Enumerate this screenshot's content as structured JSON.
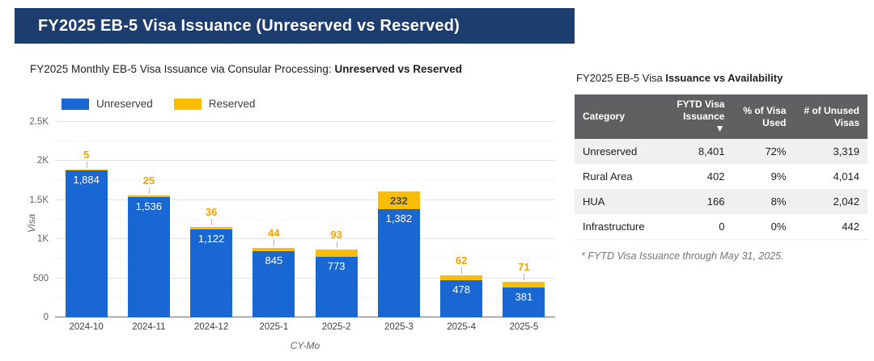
{
  "banner": {
    "title": "FY2025 EB-5 Visa Issuance (Unreserved vs Reserved)"
  },
  "colors": {
    "banner_bg": "#1d3d6e",
    "unreserved": "#1967d2",
    "reserved": "#fbbc04",
    "reserved_annotation_text": "#f5a300",
    "table_header_bg": "#5f6062",
    "table_row_stripe": "#f0f0f0"
  },
  "chart_data": [
    {
      "type": "bar",
      "stacked": true,
      "title_prefix": "FY2025 Monthly EB-5 Visa Issuance via Consular Processing: ",
      "title_bold": "Unreserved vs Reserved",
      "categories": [
        "2024-10",
        "2024-11",
        "2024-12",
        "2025-1",
        "2025-2",
        "2025-3",
        "2025-4",
        "2025-5"
      ],
      "series": [
        {
          "name": "Unreserved",
          "color": "#1967d2",
          "values": [
            1884,
            1536,
            1122,
            845,
            773,
            1382,
            478,
            381
          ]
        },
        {
          "name": "Reserved",
          "color": "#fbbc04",
          "values": [
            5,
            25,
            36,
            44,
            93,
            232,
            62,
            71
          ]
        }
      ],
      "xlabel": "CY-Mo",
      "ylabel": "Visa",
      "ylim": [
        0,
        2500
      ],
      "yticks": [
        {
          "v": 0,
          "label": "0"
        },
        {
          "v": 500,
          "label": "500"
        },
        {
          "v": 1000,
          "label": "1K"
        },
        {
          "v": 1500,
          "label": "1.5K"
        },
        {
          "v": 2000,
          "label": "2K"
        },
        {
          "v": 2500,
          "label": "2.5K"
        }
      ],
      "grid": true,
      "legend_position": "top-left"
    },
    {
      "type": "table",
      "title_prefix": "FY2025 EB-5 Visa ",
      "title_bold": "Issuance vs Availability",
      "columns": [
        {
          "lines": [
            "Category"
          ],
          "align": "left",
          "sortable": false
        },
        {
          "lines": [
            "FYTD Visa",
            "Issuance ▼"
          ],
          "align": "right",
          "sortable": true
        },
        {
          "lines": [
            "% of Visa",
            "Used"
          ],
          "align": "right",
          "sortable": false
        },
        {
          "lines": [
            "# of Unused",
            "Visas"
          ],
          "align": "right",
          "sortable": false
        }
      ],
      "rows": [
        [
          "Unreserved",
          "8,401",
          "72%",
          "3,319"
        ],
        [
          "Rural Area",
          "402",
          "9%",
          "4,014"
        ],
        [
          "HUA",
          "166",
          "8%",
          "2,042"
        ],
        [
          "Infrastructure",
          "0",
          "0%",
          "442"
        ]
      ],
      "footnote": "* FYTD Visa Issuance through May 31, 2025."
    }
  ]
}
